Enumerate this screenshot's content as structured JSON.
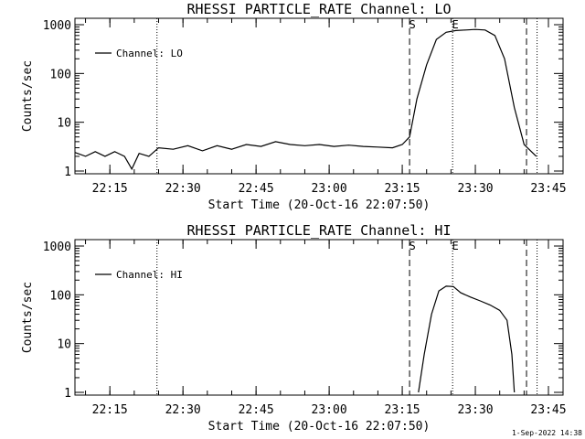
{
  "footer": {
    "date": "1-Sep-2022 14:38"
  },
  "chart_data": [
    {
      "type": "line",
      "title": "RHESSI PARTICLE_RATE Channel: LO",
      "xlabel": "Start Time (20-Oct-16 22:07:50)",
      "ylabel": "Counts/sec",
      "xlim": [
        "22:07:50",
        "23:48:00"
      ],
      "ylim": [
        1,
        1000
      ],
      "yscale": "log",
      "xticks": [
        "22:15",
        "22:30",
        "22:45",
        "23:00",
        "23:15",
        "23:30",
        "23:45"
      ],
      "yticks": [
        "1",
        "10",
        "100",
        "1000"
      ],
      "legend": {
        "position": "top-left",
        "label": "Channel: LO"
      },
      "markers": {
        "start_label": "S",
        "end_label": "E",
        "start": "23:16:30",
        "end": "23:40:30"
      },
      "dotted_lines": [
        "22:24:40",
        "23:25:20",
        "23:42:40"
      ],
      "series": [
        {
          "name": "Channel: LO",
          "points": [
            [
              "22:07:50",
              2.4
            ],
            [
              "22:10:00",
              2.0
            ],
            [
              "22:12:00",
              2.5
            ],
            [
              "22:14:00",
              2.0
            ],
            [
              "22:16:00",
              2.5
            ],
            [
              "22:18:00",
              2.0
            ],
            [
              "22:19:30",
              1.1
            ],
            [
              "22:21:00",
              2.3
            ],
            [
              "22:23:00",
              2.0
            ],
            [
              "22:25:00",
              3.0
            ],
            [
              "22:28:00",
              2.8
            ],
            [
              "22:31:00",
              3.3
            ],
            [
              "22:34:00",
              2.6
            ],
            [
              "22:37:00",
              3.3
            ],
            [
              "22:40:00",
              2.8
            ],
            [
              "22:43:00",
              3.5
            ],
            [
              "22:46:00",
              3.2
            ],
            [
              "22:49:00",
              4.0
            ],
            [
              "22:52:00",
              3.5
            ],
            [
              "22:55:00",
              3.3
            ],
            [
              "22:58:00",
              3.5
            ],
            [
              "23:01:00",
              3.2
            ],
            [
              "23:04:00",
              3.4
            ],
            [
              "23:07:00",
              3.2
            ],
            [
              "23:10:00",
              3.1
            ],
            [
              "23:13:00",
              3.0
            ],
            [
              "23:15:00",
              3.5
            ],
            [
              "23:16:30",
              5.0
            ],
            [
              "23:18:00",
              30
            ],
            [
              "23:20:00",
              150
            ],
            [
              "23:22:00",
              500
            ],
            [
              "23:24:00",
              700
            ],
            [
              "23:26:00",
              760
            ],
            [
              "23:28:00",
              780
            ],
            [
              "23:30:00",
              800
            ],
            [
              "23:32:00",
              780
            ],
            [
              "23:34:00",
              600
            ],
            [
              "23:36:00",
              200
            ],
            [
              "23:38:00",
              20
            ],
            [
              "23:40:00",
              3.5
            ],
            [
              "23:41:00",
              2.8
            ],
            [
              "23:42:30",
              2.0
            ]
          ]
        }
      ]
    },
    {
      "type": "line",
      "title": "RHESSI PARTICLE_RATE Channel: HI",
      "xlabel": "Start Time (20-Oct-16 22:07:50)",
      "ylabel": "Counts/sec",
      "xlim": [
        "22:07:50",
        "23:48:00"
      ],
      "ylim": [
        1,
        1000
      ],
      "yscale": "log",
      "xticks": [
        "22:15",
        "22:30",
        "22:45",
        "23:00",
        "23:15",
        "23:30",
        "23:45"
      ],
      "yticks": [
        "1",
        "10",
        "100",
        "1000"
      ],
      "legend": {
        "position": "top-left",
        "label": "Channel: HI"
      },
      "markers": {
        "start_label": "S",
        "end_label": "E",
        "start": "23:16:30",
        "end": "23:40:30"
      },
      "dotted_lines": [
        "22:24:40",
        "23:25:20",
        "23:42:40"
      ],
      "series": [
        {
          "name": "Channel: HI",
          "points": [
            [
              "23:18:20",
              1.0
            ],
            [
              "23:19:30",
              6
            ],
            [
              "23:21:00",
              40
            ],
            [
              "23:22:30",
              120
            ],
            [
              "23:24:00",
              150
            ],
            [
              "23:25:30",
              148
            ],
            [
              "23:27:00",
              110
            ],
            [
              "23:29:00",
              90
            ],
            [
              "23:31:00",
              75
            ],
            [
              "23:33:00",
              62
            ],
            [
              "23:35:00",
              48
            ],
            [
              "23:36:30",
              30
            ],
            [
              "23:37:30",
              6
            ],
            [
              "23:38:00",
              1.0
            ]
          ]
        }
      ]
    }
  ]
}
